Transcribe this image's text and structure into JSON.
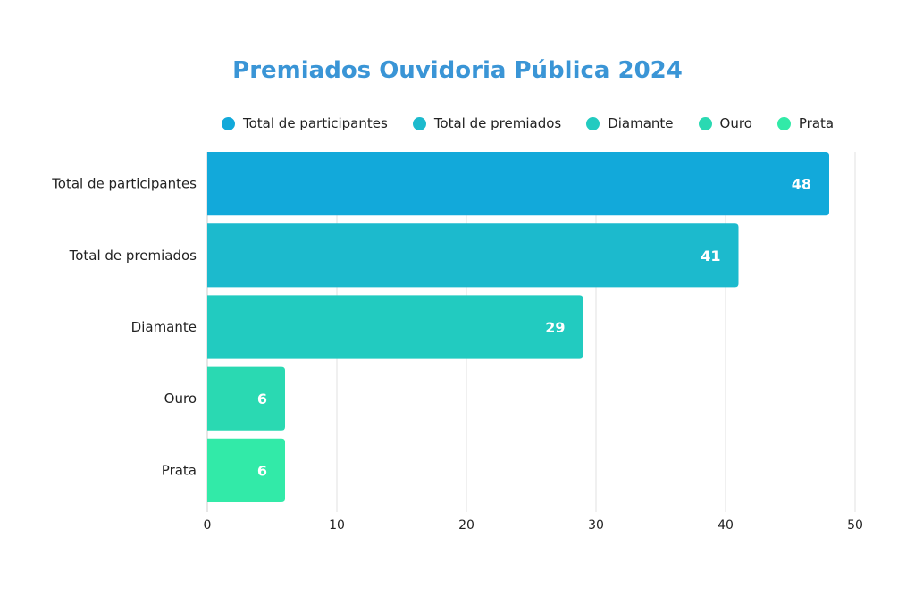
{
  "chart_data": {
    "type": "bar",
    "orientation": "horizontal",
    "title": "Premiados Ouvidoria Pública 2024",
    "categories": [
      "Total de participantes",
      "Total de premiados",
      "Diamante",
      "Ouro",
      "Prata"
    ],
    "values": [
      48,
      41,
      29,
      6,
      6
    ],
    "data_labels": [
      "48",
      "41",
      "29",
      "6",
      "6"
    ],
    "colors": [
      "#12a9da",
      "#1cbacd",
      "#22cbc0",
      "#2ad9b2",
      "#32eaa8"
    ],
    "legend": {
      "placement": "top",
      "entries": [
        {
          "label": "Total de participantes",
          "color": "#12a9da"
        },
        {
          "label": "Total de premiados",
          "color": "#1cbacd"
        },
        {
          "label": "Diamante",
          "color": "#22cbc0"
        },
        {
          "label": "Ouro",
          "color": "#2ad9b2"
        },
        {
          "label": "Prata",
          "color": "#32eaa8"
        }
      ]
    },
    "xlabel": "",
    "ylabel": "",
    "xlim": [
      0,
      50
    ],
    "xticks": [
      0,
      10,
      20,
      30,
      40,
      50
    ],
    "xtick_labels": [
      "0",
      "10",
      "20",
      "30",
      "40",
      "50"
    ],
    "grid": true,
    "title_color": "#3a95d6"
  }
}
